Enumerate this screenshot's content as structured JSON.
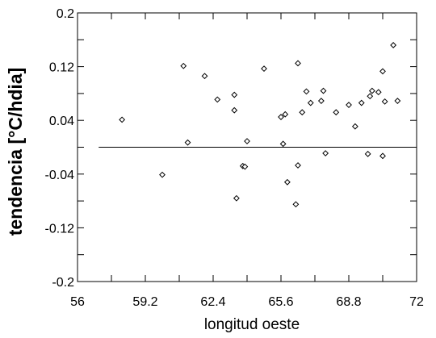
{
  "chart_data": {
    "type": "scatter",
    "title": "",
    "xlabel": "longitud oeste",
    "ylabel": "tendencia [°C/hdia]",
    "xlim": [
      56,
      72
    ],
    "ylim": [
      -0.2,
      0.2
    ],
    "xticks": [
      56,
      59.2,
      62.4,
      65.6,
      68.8,
      72
    ],
    "xtick_labels": [
      "56",
      "59.2",
      "62.4",
      "65.6",
      "68.8",
      "72"
    ],
    "yticks": [
      0.2,
      0.12,
      0.04,
      -0.04,
      -0.12,
      -0.2
    ],
    "ytick_labels": [
      "0.2",
      "0.12",
      "0.04",
      "-0.04",
      "-0.12",
      "-0.2"
    ],
    "grid": false,
    "zero_line": true,
    "marker": "diamond-open",
    "series": [
      {
        "points": [
          {
            "x": 58.1,
            "y": 0.041
          },
          {
            "x": 60.0,
            "y": -0.041
          },
          {
            "x": 61.0,
            "y": 0.121
          },
          {
            "x": 61.2,
            "y": 0.007
          },
          {
            "x": 62.0,
            "y": 0.106
          },
          {
            "x": 62.6,
            "y": 0.071
          },
          {
            "x": 63.4,
            "y": 0.055
          },
          {
            "x": 63.4,
            "y": 0.078
          },
          {
            "x": 63.5,
            "y": -0.076
          },
          {
            "x": 63.8,
            "y": -0.028
          },
          {
            "x": 63.9,
            "y": -0.029
          },
          {
            "x": 64.0,
            "y": 0.009
          },
          {
            "x": 64.8,
            "y": 0.117
          },
          {
            "x": 65.6,
            "y": 0.045
          },
          {
            "x": 65.7,
            "y": 0.005
          },
          {
            "x": 65.8,
            "y": 0.049
          },
          {
            "x": 65.9,
            "y": -0.052
          },
          {
            "x": 66.3,
            "y": -0.085
          },
          {
            "x": 66.4,
            "y": 0.125
          },
          {
            "x": 66.4,
            "y": -0.027
          },
          {
            "x": 66.6,
            "y": 0.052
          },
          {
            "x": 66.8,
            "y": 0.083
          },
          {
            "x": 67.0,
            "y": 0.066
          },
          {
            "x": 67.5,
            "y": 0.069
          },
          {
            "x": 67.6,
            "y": 0.084
          },
          {
            "x": 67.7,
            "y": -0.009
          },
          {
            "x": 68.2,
            "y": 0.052
          },
          {
            "x": 68.8,
            "y": 0.063
          },
          {
            "x": 69.1,
            "y": 0.031
          },
          {
            "x": 69.4,
            "y": 0.066
          },
          {
            "x": 69.7,
            "y": -0.01
          },
          {
            "x": 69.8,
            "y": 0.076
          },
          {
            "x": 69.9,
            "y": 0.084
          },
          {
            "x": 70.2,
            "y": 0.082
          },
          {
            "x": 70.4,
            "y": 0.113
          },
          {
            "x": 70.4,
            "y": -0.013
          },
          {
            "x": 70.5,
            "y": 0.068
          },
          {
            "x": 70.9,
            "y": 0.152
          },
          {
            "x": 71.1,
            "y": 0.069
          }
        ]
      }
    ]
  }
}
